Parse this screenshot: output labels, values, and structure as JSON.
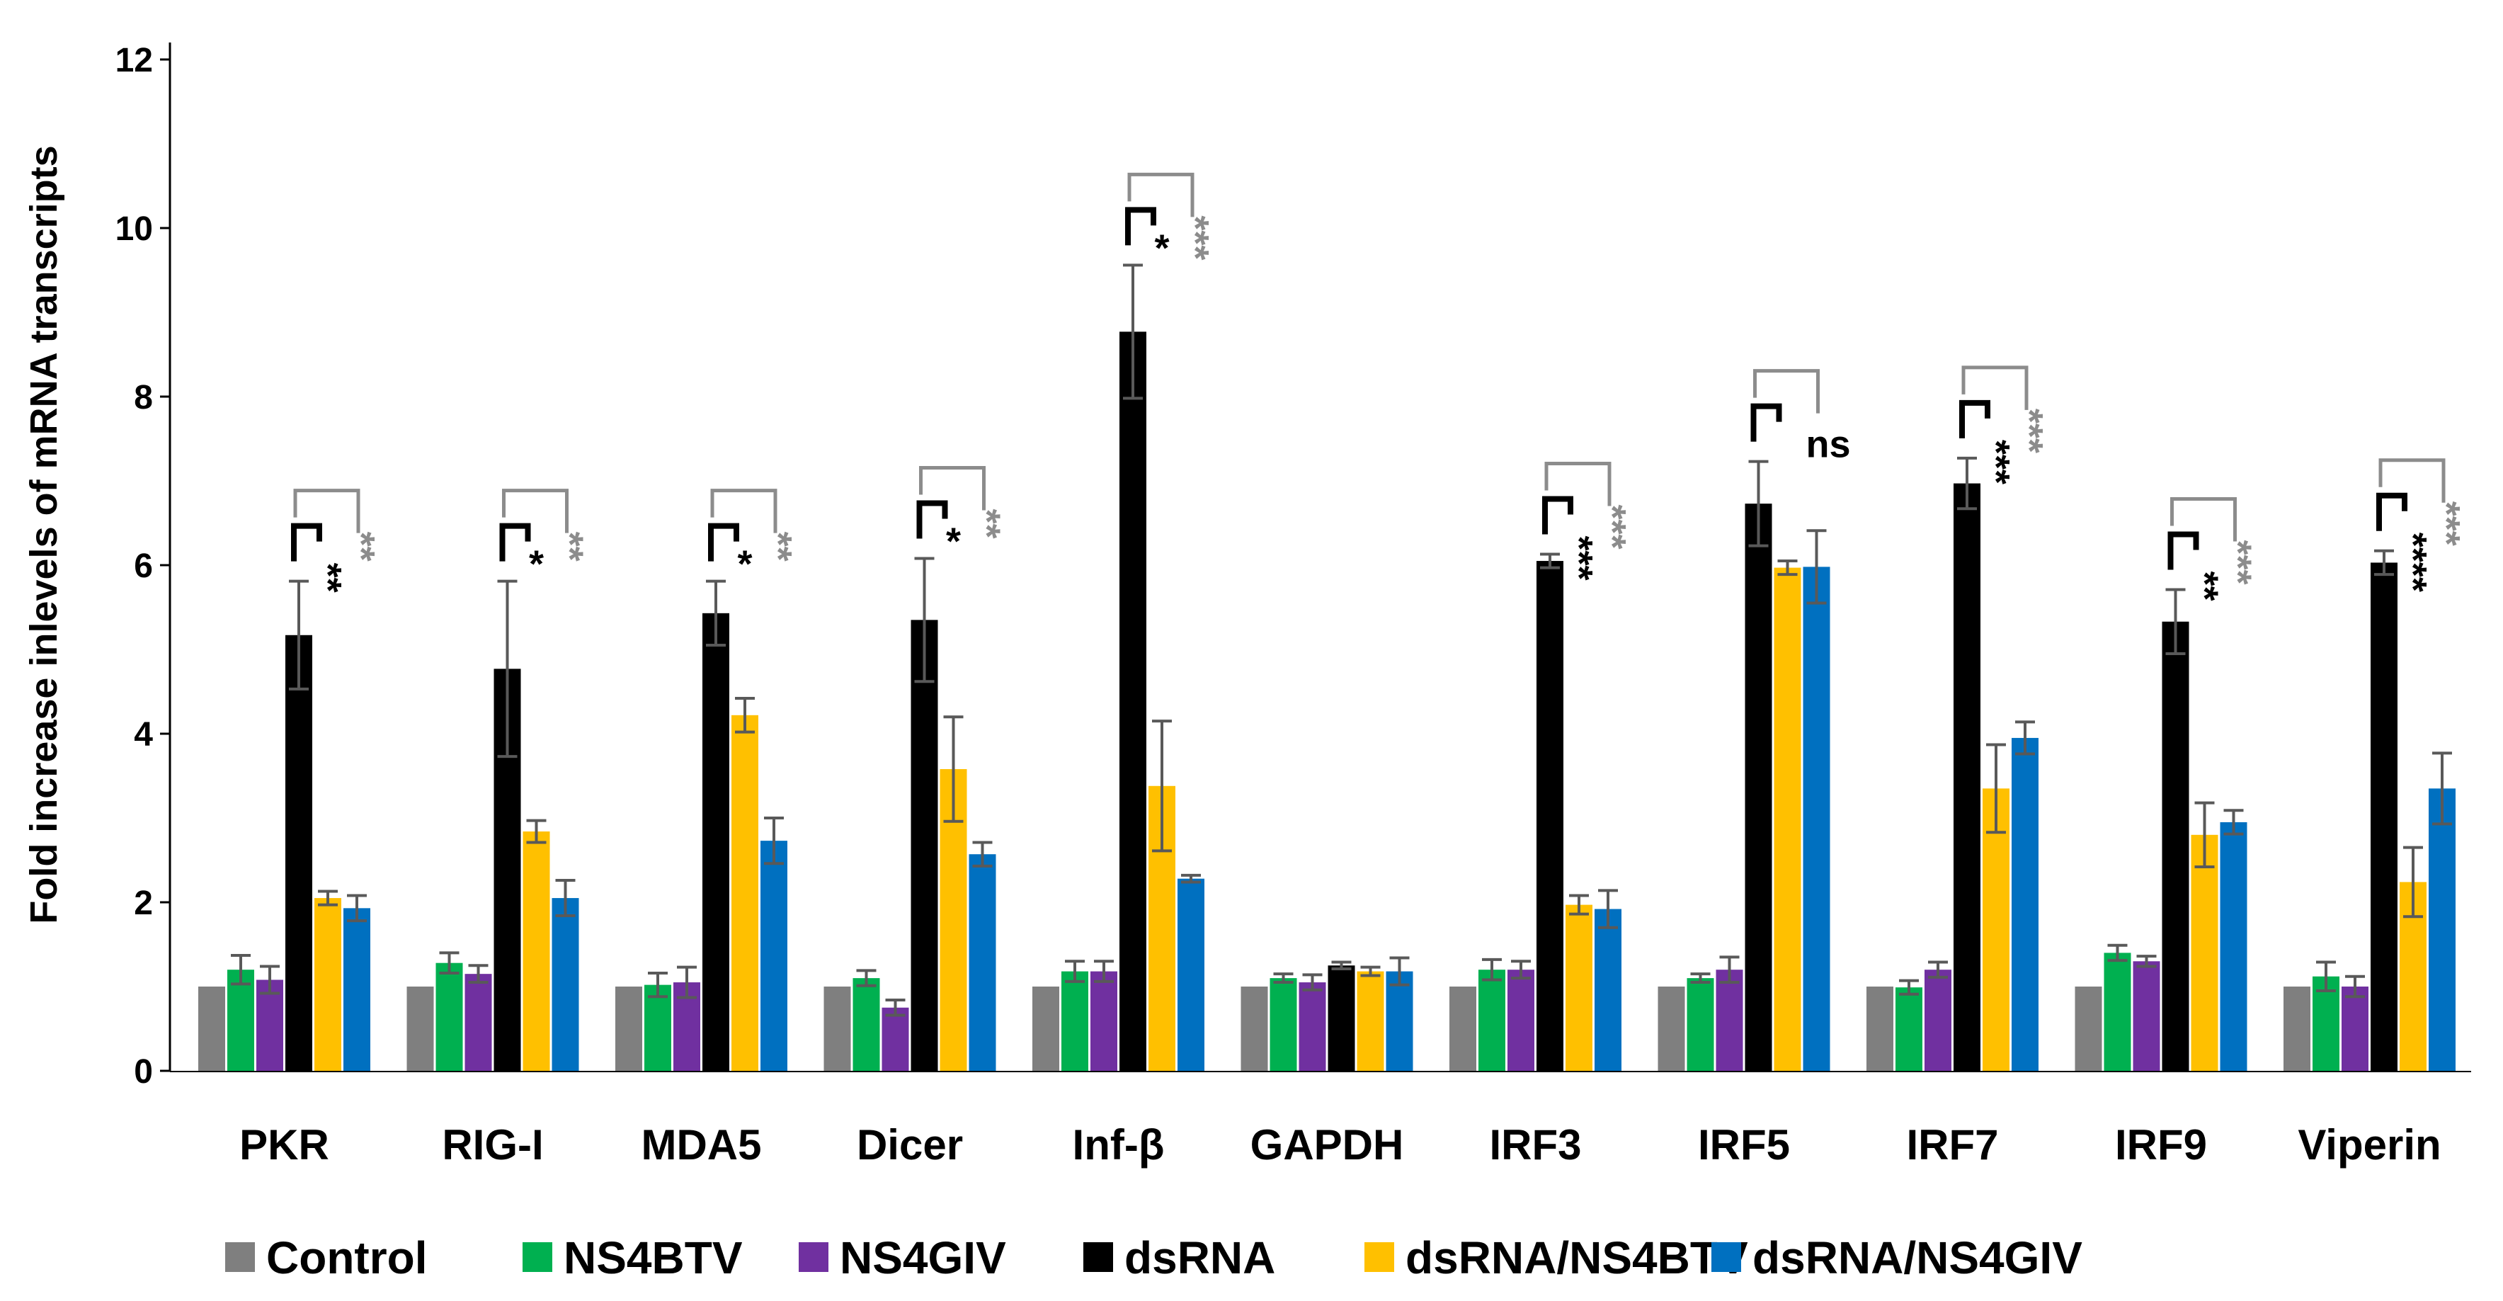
{
  "chart_data": {
    "type": "bar",
    "title": "",
    "xlabel": "",
    "ylabel": "Fold increase inlevels of  mRNA transcripts",
    "ylim": [
      0,
      12
    ],
    "yticks": [
      "0",
      "2",
      "4",
      "6",
      "8",
      "10",
      "12"
    ],
    "grid": false,
    "legend_position": "bottom",
    "categories": [
      "PKR",
      "RIG-I",
      "MDA5",
      "Dicer",
      "Inf-β",
      "GAPDH",
      "IRF3",
      "IRF5",
      "IRF7",
      "IRF9",
      "Viperin"
    ],
    "series": [
      {
        "name": "Control",
        "color": "#7f7f7f",
        "values": [
          1.0,
          1.0,
          1.0,
          1.0,
          1.0,
          1.0,
          1.0,
          1.0,
          1.0,
          1.0,
          1.0
        ],
        "errors": [
          0,
          0,
          0,
          0,
          0,
          0,
          0,
          0,
          0,
          0,
          0
        ]
      },
      {
        "name": "NS4BTV",
        "color": "#00b050",
        "values": [
          1.2,
          1.28,
          1.02,
          1.1,
          1.18,
          1.1,
          1.2,
          1.1,
          0.99,
          1.4,
          1.12
        ],
        "errors": [
          0.17,
          0.12,
          0.14,
          0.09,
          0.12,
          0.05,
          0.12,
          0.05,
          0.08,
          0.09,
          0.17
        ]
      },
      {
        "name": "NS4GIV",
        "color": "#7030a0",
        "values": [
          1.08,
          1.15,
          1.05,
          0.75,
          1.18,
          1.05,
          1.2,
          1.2,
          1.2,
          1.3,
          1.0
        ],
        "errors": [
          0.16,
          0.1,
          0.18,
          0.09,
          0.12,
          0.09,
          0.1,
          0.15,
          0.09,
          0.06,
          0.12
        ]
      },
      {
        "name": "dsRNA",
        "color": "#000000",
        "values": [
          5.17,
          4.77,
          5.43,
          5.35,
          8.77,
          1.25,
          6.05,
          6.73,
          6.97,
          5.33,
          6.03
        ],
        "errors": [
          0.64,
          1.04,
          0.38,
          0.73,
          0.79,
          0.04,
          0.08,
          0.5,
          0.3,
          0.38,
          0.14
        ]
      },
      {
        "name": "dsRNA/NS4BTV",
        "color": "#ffc000",
        "values": [
          2.05,
          2.84,
          4.22,
          3.58,
          3.38,
          1.18,
          1.97,
          5.97,
          3.35,
          2.8,
          2.24
        ],
        "errors": [
          0.08,
          0.13,
          0.2,
          0.62,
          0.77,
          0.05,
          0.11,
          0.08,
          0.52,
          0.38,
          0.41
        ]
      },
      {
        "name": "dsRNA/NS4GIV",
        "color": "#0070c0",
        "values": [
          1.93,
          2.05,
          2.73,
          2.57,
          2.28,
          1.18,
          1.92,
          5.98,
          3.95,
          2.95,
          3.35
        ],
        "errors": [
          0.15,
          0.21,
          0.27,
          0.14,
          0.04,
          0.16,
          0.22,
          0.43,
          0.19,
          0.14,
          0.42
        ]
      }
    ],
    "annotations": [
      {
        "category": "PKR",
        "black": "**",
        "gray": "**"
      },
      {
        "category": "RIG-I",
        "black": "*",
        "gray": "**"
      },
      {
        "category": "MDA5",
        "black": "*",
        "gray": "**"
      },
      {
        "category": "Dicer",
        "black": "*",
        "gray": "**"
      },
      {
        "category": "Inf-β",
        "black": "*",
        "gray": "***"
      },
      {
        "category": "IRF3",
        "black": "***",
        "gray": "***"
      },
      {
        "category": "IRF5",
        "black": "ns",
        "gray": ""
      },
      {
        "category": "IRF7",
        "black": "***",
        "gray": "***"
      },
      {
        "category": "IRF9",
        "black": "**",
        "gray": "***"
      },
      {
        "category": "Viperin",
        "black": "****",
        "gray": "***"
      }
    ],
    "annotation_colors": {
      "black": "#000000",
      "gray": "#8c8c8c"
    }
  }
}
